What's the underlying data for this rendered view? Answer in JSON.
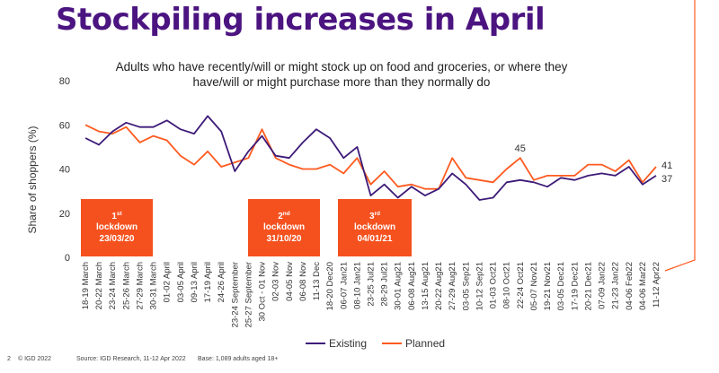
{
  "title": "Stockpiling increases in April",
  "footer": {
    "page_number": "2",
    "copyright": "© IGD 2022",
    "source": "Source: IGD Research, 11-12 Apr 2022",
    "base": "Base: 1,089 adults aged 18+"
  },
  "colors": {
    "title": "#4b1480",
    "existing": "#3d1a78",
    "planned": "#ff5a1f",
    "lockdown_box": "#f5511e"
  },
  "chart_data": {
    "type": "line",
    "title": "Adults who have recently/will or might stock up on food and groceries, or where they have/will or might purchase more than they normally do",
    "ylabel": "Share of shoppers (%)",
    "xlabel": "",
    "ylim": [
      0,
      80
    ],
    "yticks": [
      0,
      20,
      40,
      60,
      80
    ],
    "grid": false,
    "legend_position": "bottom",
    "categories": [
      "18-19 March",
      "20-22 March",
      "23-24 March",
      "25-26 March",
      "27-29 March",
      "30-31 March",
      "01-02 April",
      "03-05 April",
      "09-13 April",
      "17-19 April",
      "24-26 April",
      "23-24 September",
      "25-27 September",
      "30 Oct - 01 Nov",
      "02-03 Nov",
      "04-05 Nov",
      "06-08 Nov",
      "11-13 Dec",
      "18-20 Dec20",
      "06-07 Jan21",
      "08-10 Jan21",
      "23-25 Jul21",
      "28-29 Jul21",
      "30-01 Aug21",
      "06-08 Aug21",
      "13-15 Aug21",
      "20-22 Aug21",
      "27-29 Aug21",
      "03-05 Sep21",
      "10-12 Sep21",
      "01-03 Oct21",
      "08-10 Oct21",
      "22-24 Oct21",
      "05-07 Nov21",
      "19-21 Nov21",
      "03-05 Dec21",
      "17-19 Dec21",
      "20-21 Dec21",
      "07-09 Jan22",
      "21-23 Jan22",
      "04-06 Feb22",
      "04-06 Mar22",
      "11-12 Apr22"
    ],
    "series": [
      {
        "name": "Existing",
        "values": [
          54,
          51,
          57,
          61,
          59,
          59,
          62,
          58,
          56,
          64,
          57,
          39,
          48,
          55,
          46,
          45,
          52,
          58,
          54,
          45,
          50,
          28,
          33,
          27,
          32,
          28,
          31,
          38,
          33,
          26,
          27,
          34,
          35,
          34,
          32,
          36,
          35,
          37,
          38,
          37,
          41,
          33,
          37
        ]
      },
      {
        "name": "Planned",
        "values": [
          60,
          57,
          56,
          59,
          52,
          55,
          53,
          46,
          42,
          48,
          41,
          43,
          45,
          58,
          45,
          42,
          40,
          40,
          42,
          38,
          45,
          33,
          39,
          32,
          33,
          31,
          31,
          45,
          36,
          35,
          34,
          40,
          45,
          35,
          37,
          37,
          37,
          42,
          42,
          39,
          44,
          34,
          41
        ]
      }
    ],
    "annotations": [
      {
        "label": "45",
        "series": "Planned",
        "category": "22-24 Oct21"
      },
      {
        "label": "41",
        "series": "Planned",
        "category": "11-12 Apr22"
      },
      {
        "label": "37",
        "series": "Existing",
        "category": "11-12 Apr22"
      }
    ],
    "lockdowns": [
      {
        "ordinal": "1",
        "suffix": "st",
        "label": "lockdown",
        "date": "23/03/20"
      },
      {
        "ordinal": "2",
        "suffix": "nd",
        "label": "lockdown",
        "date": "31/10/20"
      },
      {
        "ordinal": "3",
        "suffix": "rd",
        "label": "lockdown",
        "date": "04/01/21"
      }
    ]
  }
}
